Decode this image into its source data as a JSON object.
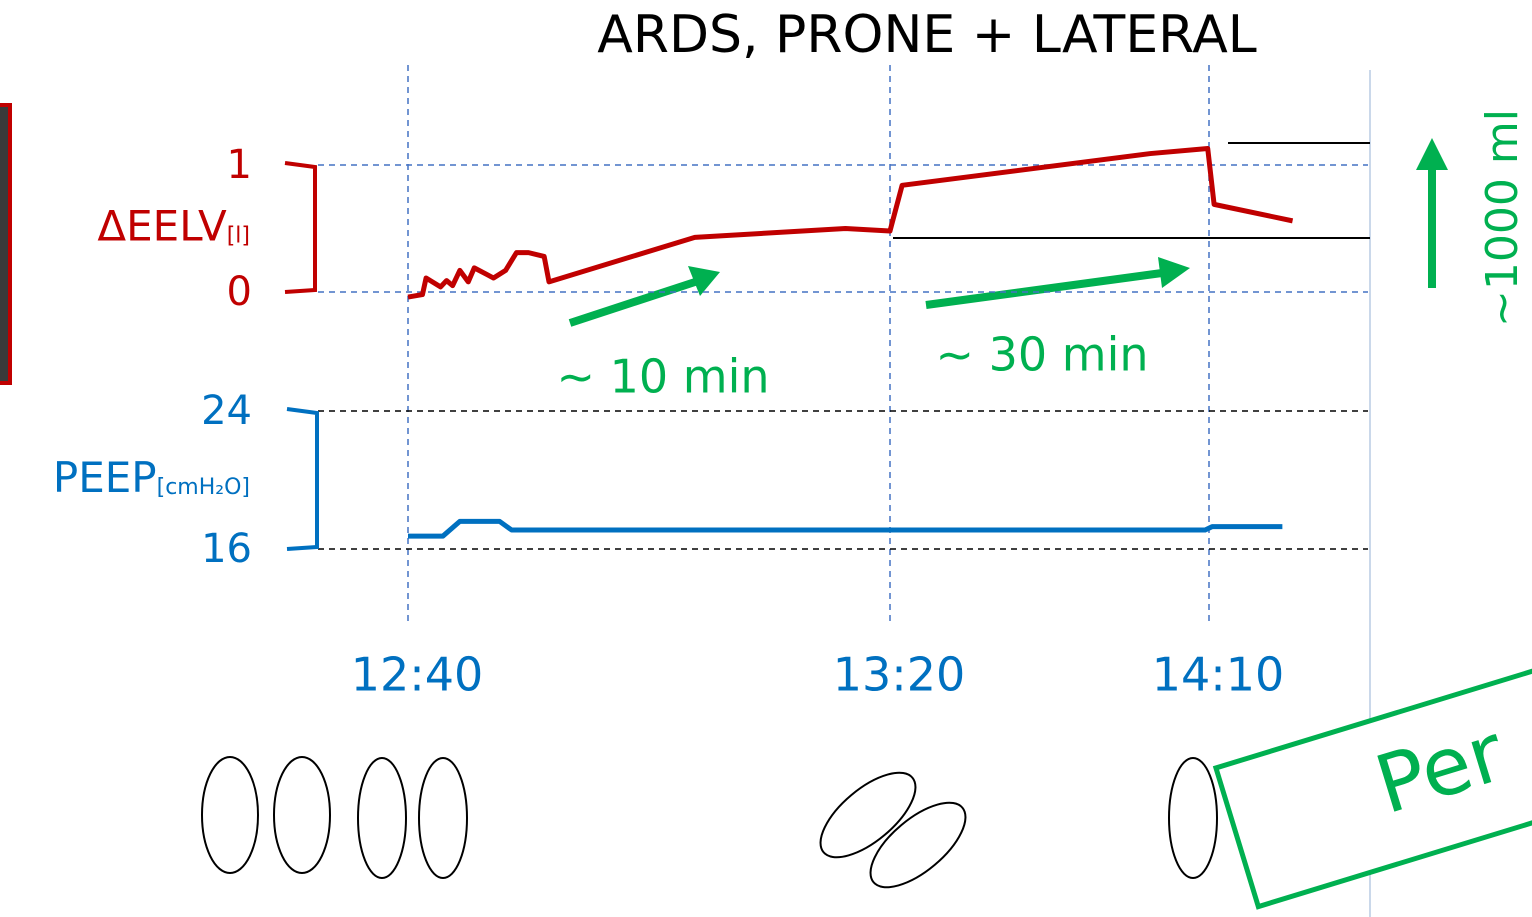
{
  "chart_data": [
    {
      "type": "line",
      "title": "ARDS, PRONE + LATERAL",
      "y_label": "ΔEELV",
      "y_unit": "[l]",
      "color": "#c00000",
      "x": [
        760,
        761.2,
        761.5,
        762.7,
        763.2,
        763.7,
        764.3,
        765.0,
        765.5,
        766.5,
        767.1,
        768.1,
        769.0,
        770.0,
        771.3,
        771.7,
        783.8,
        796.3,
        800,
        801.9,
        840.8,
        849.8,
        850.8,
        863.1
      ],
      "values": [
        -0.04,
        -0.02,
        0.11,
        0.04,
        0.09,
        0.05,
        0.17,
        0.08,
        0.19,
        0.14,
        0.11,
        0.17,
        0.31,
        0.31,
        0.28,
        0.08,
        0.43,
        0.5,
        0.48,
        0.84,
        1.09,
        1.13,
        0.69,
        0.56
      ],
      "xticks": [
        {
          "value": 760,
          "label": "12:40"
        },
        {
          "value": 800,
          "label": "13:20"
        },
        {
          "value": 850,
          "label": "14:10"
        }
      ],
      "ylim": [
        0,
        1
      ],
      "yticks": [
        0,
        1
      ],
      "annotations": [
        "~ 10 min",
        "~ 30 min",
        "~1000 ml"
      ]
    },
    {
      "type": "line",
      "y_label": "PEEP",
      "y_unit": "[cmH₂O]",
      "color": "#0070c0",
      "x": [
        760,
        762.9,
        764.3,
        767.6,
        768.6,
        849.4,
        850.5,
        861.5
      ],
      "values": [
        16.75,
        16.75,
        17.6,
        17.6,
        17.1,
        17.1,
        17.3,
        17.3
      ],
      "ylim": [
        16,
        24
      ],
      "yticks": [
        16,
        24
      ]
    }
  ],
  "stamp": "Per"
}
